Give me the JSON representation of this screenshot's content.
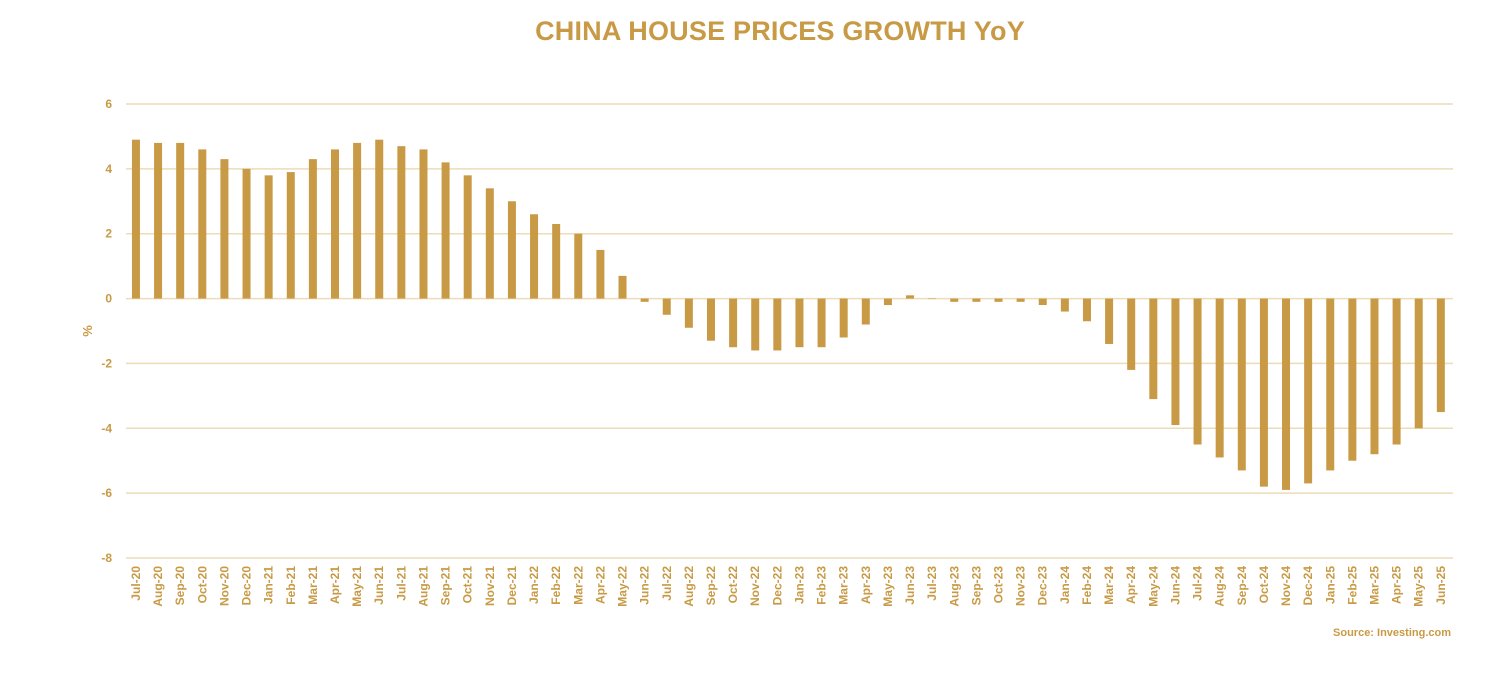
{
  "colors": {
    "accent": "#c89a45",
    "grid": "#ecdcb8",
    "text": "#c89a45"
  },
  "chart_data": {
    "type": "bar",
    "title": "CHINA HOUSE PRICES GROWTH YoY",
    "ylabel": "%",
    "xlabel": "",
    "source": "Source: Investing.com",
    "ylim": [
      -8,
      6
    ],
    "yticks": [
      6,
      4,
      2,
      0,
      -2,
      -4,
      -6,
      -8
    ],
    "grid": true,
    "categories": [
      "Jul-20",
      "Aug-20",
      "Sep-20",
      "Oct-20",
      "Nov-20",
      "Dec-20",
      "Jan-21",
      "Feb-21",
      "Mar-21",
      "Apr-21",
      "May-21",
      "Jun-21",
      "Jul-21",
      "Aug-21",
      "Sep-21",
      "Oct-21",
      "Nov-21",
      "Dec-21",
      "Jan-22",
      "Feb-22",
      "Mar-22",
      "Apr-22",
      "May-22",
      "Jun-22",
      "Jul-22",
      "Aug-22",
      "Sep-22",
      "Oct-22",
      "Nov-22",
      "Dec-22",
      "Jan-23",
      "Feb-23",
      "Mar-23",
      "Apr-23",
      "May-23",
      "Jun-23",
      "Jul-23",
      "Aug-23",
      "Sep-23",
      "Oct-23",
      "Nov-23",
      "Dec-23",
      "Jan-24",
      "Feb-24",
      "Mar-24",
      "Apr-24",
      "May-24",
      "Jun-24",
      "Jul-24",
      "Aug-24",
      "Sep-24",
      "Oct-24",
      "Nov-24",
      "Dec-24",
      "Jan-25",
      "Feb-25",
      "Mar-25",
      "Apr-25",
      "May-25",
      "Jun-25"
    ],
    "values": [
      4.9,
      4.8,
      4.8,
      4.6,
      4.3,
      4.0,
      3.8,
      3.9,
      4.3,
      4.6,
      4.8,
      4.9,
      4.7,
      4.6,
      4.2,
      3.8,
      3.4,
      3.0,
      2.6,
      2.3,
      2.0,
      1.5,
      0.7,
      -0.1,
      -0.5,
      -0.9,
      -1.3,
      -1.5,
      -1.6,
      -1.6,
      -1.5,
      -1.5,
      -1.2,
      -0.8,
      -0.2,
      0.1,
      0.0,
      -0.1,
      -0.1,
      -0.1,
      -0.1,
      -0.2,
      -0.4,
      -0.7,
      -1.4,
      -2.2,
      -3.1,
      -3.9,
      -4.5,
      -4.9,
      -5.3,
      -5.8,
      -5.9,
      -5.7,
      -5.3,
      -5.0,
      -4.8,
      -4.5,
      -4.0,
      -3.5
    ]
  }
}
